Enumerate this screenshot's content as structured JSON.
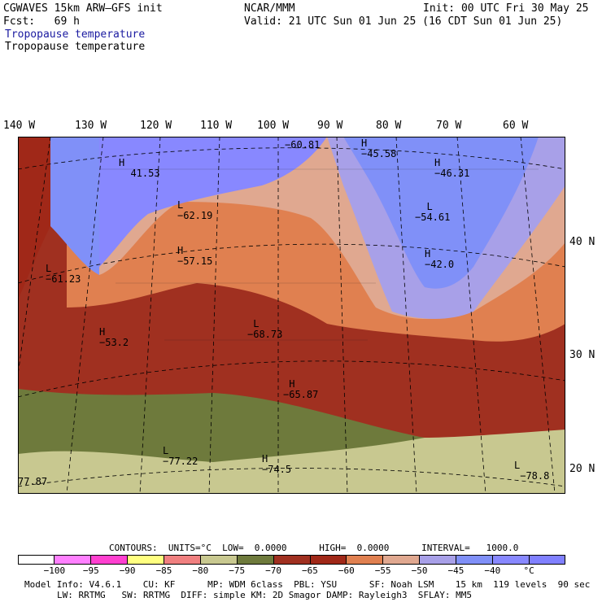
{
  "header": {
    "model_line": "CGWAVES 15km ARW–GFS init",
    "center_line": "NCAR/MMM",
    "init_line": "Init: 00 UTC Fri 30 May 25",
    "fcst_line": "Fcst:   69 h",
    "valid_line": "Valid: 21 UTC Sun 01 Jun 25 (16 CDT Sun 01 Jun 25)",
    "field_title_color": "Tropopause temperature",
    "field_title": "Tropopause temperature"
  },
  "map": {
    "longitude_labels": [
      "140 W",
      "130 W",
      "120 W",
      "110 W",
      "100 W",
      "90 W",
      "80 W",
      "70 W",
      "60 W"
    ],
    "latitude_labels": [
      "40 N",
      "30 N",
      "20 N"
    ],
    "extrema": [
      {
        "letter": "H",
        "value": "41.53"
      },
      {
        "letter": "",
        "value": "−60.81"
      },
      {
        "letter": "H",
        "value": "−45.58"
      },
      {
        "letter": "H",
        "value": "−46.31"
      },
      {
        "letter": "L",
        "value": "−62.19"
      },
      {
        "letter": "L",
        "value": "−54.61"
      },
      {
        "letter": "H",
        "value": "−57.15"
      },
      {
        "letter": "H",
        "value": "−42.0"
      },
      {
        "letter": "L",
        "value": "−61.23"
      },
      {
        "letter": "H",
        "value": "−53.2"
      },
      {
        "letter": "L",
        "value": "−68.73"
      },
      {
        "letter": "H",
        "value": "−65.87"
      },
      {
        "letter": "L",
        "value": "−77.22"
      },
      {
        "letter": "H",
        "value": "−74.5"
      },
      {
        "letter": "",
        "value": "77.87"
      },
      {
        "letter": "L",
        "value": "−78.8"
      }
    ]
  },
  "contours_line": "CONTOURS:  UNITS=°C  LOW=  0.0000      HIGH=  0.0000      INTERVAL=   1000.0",
  "color_scale": {
    "colors": [
      "#ffffff",
      "#ff80ff",
      "#ff40d0",
      "#ffff80",
      "#f08080",
      "#c8c890",
      "#6e7a3c",
      "#a03020",
      "#a02818",
      "#e08050",
      "#e0a890",
      "#a8a0e8",
      "#8090f8",
      "#8888ff",
      "#8080ff"
    ],
    "labels": [
      "−100",
      "−95",
      "−90",
      "−85",
      "−80",
      "−75",
      "−70",
      "−65",
      "−60",
      "−55",
      "−50",
      "−45",
      "−40",
      "°C"
    ]
  },
  "footer": {
    "line1": "Model Info: V4.6.1    CU: KF      MP: WDM 6class  PBL: YSU      SF: Noah LSM    15 km  119 levels  90 sec",
    "line2": "LW: RRTMG   SW: RRTMG  DIFF: simple KM: 2D Smagor DAMP: Rayleigh3  SFLAY: MM5"
  }
}
